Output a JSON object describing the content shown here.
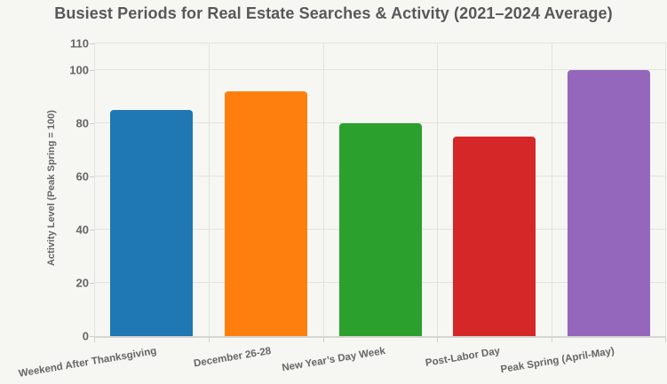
{
  "chart_data": {
    "type": "bar",
    "title": "Busiest Periods for Real Estate Searches & Activity (2021–2024 Average)",
    "xlabel": "",
    "ylabel": "Activity Level (Peak Spring = 100)",
    "categories": [
      "Weekend After Thanksgiving",
      "December 26-28",
      "New Year’s Day Week",
      "Post-Labor Day",
      "Peak Spring (April-May)"
    ],
    "values": [
      85,
      92,
      80,
      75,
      100
    ],
    "bar_colors": [
      "#1f77b4",
      "#ff7f0e",
      "#2ca02c",
      "#d62728",
      "#9467bd"
    ],
    "yticks": [
      0,
      20,
      40,
      60,
      80,
      100,
      110
    ],
    "ylim": [
      0,
      110
    ],
    "grid": true,
    "legend": false,
    "colors": {
      "background": "#f6f6f3",
      "gridline": "#e2e2df",
      "axis_line": "#d5d5d2",
      "tick_mark": "#cfcfcc",
      "title_text": "#58585a",
      "label_text": "#666666"
    }
  }
}
